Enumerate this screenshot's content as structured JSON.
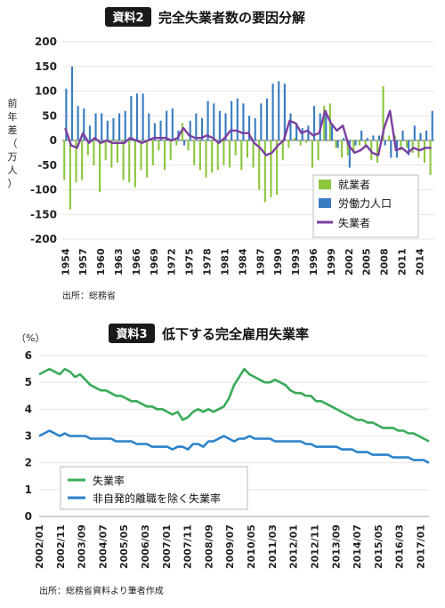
{
  "chart_data": [
    {
      "type": "bar",
      "badge": "資料2",
      "title": "完全失業者数の要因分解",
      "ylabel": "前年差（万人）",
      "ylim": [
        -200,
        200
      ],
      "yticks": [
        200,
        150,
        100,
        50,
        0,
        -50,
        -100,
        -150,
        -200
      ],
      "x_tick_labels": [
        "1954",
        "1957",
        "1960",
        "1963",
        "1966",
        "1969",
        "1972",
        "1975",
        "1978",
        "1981",
        "1984",
        "1987",
        "1990",
        "1993",
        "1996",
        "1999",
        "2002",
        "2005",
        "2008",
        "2011",
        "2014"
      ],
      "years": [
        1954,
        1955,
        1956,
        1957,
        1958,
        1959,
        1960,
        1961,
        1962,
        1963,
        1964,
        1965,
        1966,
        1967,
        1968,
        1969,
        1970,
        1971,
        1972,
        1973,
        1974,
        1975,
        1976,
        1977,
        1978,
        1979,
        1980,
        1981,
        1982,
        1983,
        1984,
        1985,
        1986,
        1987,
        1988,
        1989,
        1990,
        1991,
        1992,
        1993,
        1994,
        1995,
        1996,
        1997,
        1998,
        1999,
        2000,
        2001,
        2002,
        2003,
        2004,
        2005,
        2006,
        2007,
        2008,
        2009,
        2010,
        2011,
        2012,
        2013,
        2014,
        2015,
        2016
      ],
      "series": [
        {
          "name": "就業者",
          "color": "#8dc63f",
          "values": [
            -80,
            -140,
            -85,
            -80,
            -30,
            -50,
            -105,
            -40,
            -55,
            -45,
            -80,
            -85,
            -95,
            -60,
            -75,
            -50,
            -20,
            -60,
            -40,
            -10,
            35,
            -20,
            -50,
            -60,
            -75,
            -65,
            -60,
            -50,
            -55,
            -30,
            -60,
            -35,
            -55,
            -100,
            -125,
            -115,
            -110,
            -40,
            -15,
            5,
            -10,
            -5,
            -55,
            -40,
            70,
            75,
            -15,
            -35,
            -30,
            -25,
            -10,
            -15,
            -40,
            -45,
            110,
            10,
            10,
            -20,
            -15,
            -25,
            -35,
            -45,
            -70
          ]
        },
        {
          "name": "労働力人口",
          "color": "#3a7cc1",
          "values": [
            105,
            150,
            70,
            65,
            30,
            55,
            55,
            40,
            45,
            55,
            60,
            90,
            95,
            95,
            55,
            35,
            40,
            60,
            65,
            20,
            -10,
            40,
            55,
            45,
            80,
            75,
            60,
            55,
            80,
            85,
            75,
            50,
            45,
            75,
            85,
            115,
            120,
            115,
            55,
            35,
            25,
            30,
            70,
            55,
            60,
            30,
            -15,
            5,
            -55,
            -10,
            20,
            5,
            10,
            10,
            -10,
            -35,
            -35,
            20,
            -30,
            30,
            15,
            20,
            60
          ]
        },
        {
          "name": "失業者",
          "color": "#7b3fa0",
          "values": [
            25,
            -10,
            -15,
            15,
            -5,
            5,
            -5,
            0,
            -5,
            -5,
            -5,
            5,
            0,
            -5,
            0,
            5,
            5,
            5,
            0,
            5,
            25,
            10,
            5,
            5,
            10,
            5,
            -5,
            5,
            20,
            20,
            15,
            15,
            -5,
            -15,
            -30,
            -25,
            -10,
            0,
            40,
            35,
            15,
            20,
            10,
            15,
            60,
            35,
            20,
            30,
            -10,
            -25,
            -20,
            -10,
            -25,
            -30,
            25,
            60,
            -20,
            -15,
            -25,
            -15,
            -20,
            -15,
            -15
          ]
        }
      ],
      "legend": [
        "就業者",
        "労働力人口",
        "失業者"
      ],
      "legend_position": "bottom-right",
      "source": "出所：総務省"
    },
    {
      "type": "line",
      "badge": "資料3",
      "title": "低下する完全雇用失業率",
      "yunit": "（%）",
      "ylim": [
        0,
        6
      ],
      "yticks": [
        6,
        5,
        4,
        3,
        2,
        1,
        0
      ],
      "x_tick_labels": [
        "2002/01",
        "2002/11",
        "2003/09",
        "2004/07",
        "2005/05",
        "2006/03",
        "2007/01",
        "2007/11",
        "2008/09",
        "2009/07",
        "2010/05",
        "2011/03",
        "2012/01",
        "2012/11",
        "2013/09",
        "2014/07",
        "2015/05",
        "2016/03",
        "2017/01"
      ],
      "x_start": "2002/01",
      "x_end": "2017/10",
      "series": [
        {
          "name": "失業率",
          "color": "#3aaa5a",
          "values": [
            5.3,
            5.4,
            5.5,
            5.4,
            5.3,
            5.5,
            5.4,
            5.2,
            5.3,
            5.1,
            4.9,
            4.8,
            4.7,
            4.7,
            4.6,
            4.5,
            4.5,
            4.4,
            4.3,
            4.3,
            4.2,
            4.1,
            4.1,
            4.0,
            4.0,
            3.9,
            3.8,
            3.9,
            3.6,
            3.7,
            3.9,
            4.0,
            3.9,
            4.0,
            3.9,
            4.0,
            4.1,
            4.4,
            4.9,
            5.2,
            5.5,
            5.3,
            5.2,
            5.1,
            5.0,
            5.0,
            5.1,
            5.0,
            4.9,
            4.7,
            4.6,
            4.6,
            4.5,
            4.5,
            4.3,
            4.3,
            4.2,
            4.1,
            4.0,
            3.9,
            3.8,
            3.7,
            3.6,
            3.6,
            3.5,
            3.5,
            3.4,
            3.3,
            3.3,
            3.3,
            3.2,
            3.2,
            3.1,
            3.1,
            3.0,
            2.9,
            2.8
          ]
        },
        {
          "name": "非自発的離職を除く失業率",
          "color": "#2a82c9",
          "values": [
            3.0,
            3.1,
            3.2,
            3.1,
            3.0,
            3.1,
            3.0,
            3.0,
            3.0,
            3.0,
            2.9,
            2.9,
            2.9,
            2.9,
            2.9,
            2.8,
            2.8,
            2.8,
            2.8,
            2.7,
            2.7,
            2.7,
            2.6,
            2.6,
            2.6,
            2.6,
            2.5,
            2.6,
            2.6,
            2.5,
            2.7,
            2.7,
            2.6,
            2.8,
            2.8,
            2.9,
            3.0,
            2.9,
            2.8,
            2.9,
            2.9,
            3.0,
            2.9,
            2.9,
            2.9,
            2.9,
            2.8,
            2.8,
            2.8,
            2.8,
            2.8,
            2.8,
            2.7,
            2.7,
            2.6,
            2.6,
            2.6,
            2.6,
            2.6,
            2.5,
            2.5,
            2.5,
            2.4,
            2.4,
            2.4,
            2.3,
            2.3,
            2.3,
            2.3,
            2.2,
            2.2,
            2.2,
            2.2,
            2.1,
            2.1,
            2.1,
            2.0
          ]
        }
      ],
      "legend": [
        "失業率",
        "非自発的離職を除く失業率"
      ],
      "legend_position": "bottom-left",
      "source": "出所：総務省資料より筆者作成"
    }
  ]
}
